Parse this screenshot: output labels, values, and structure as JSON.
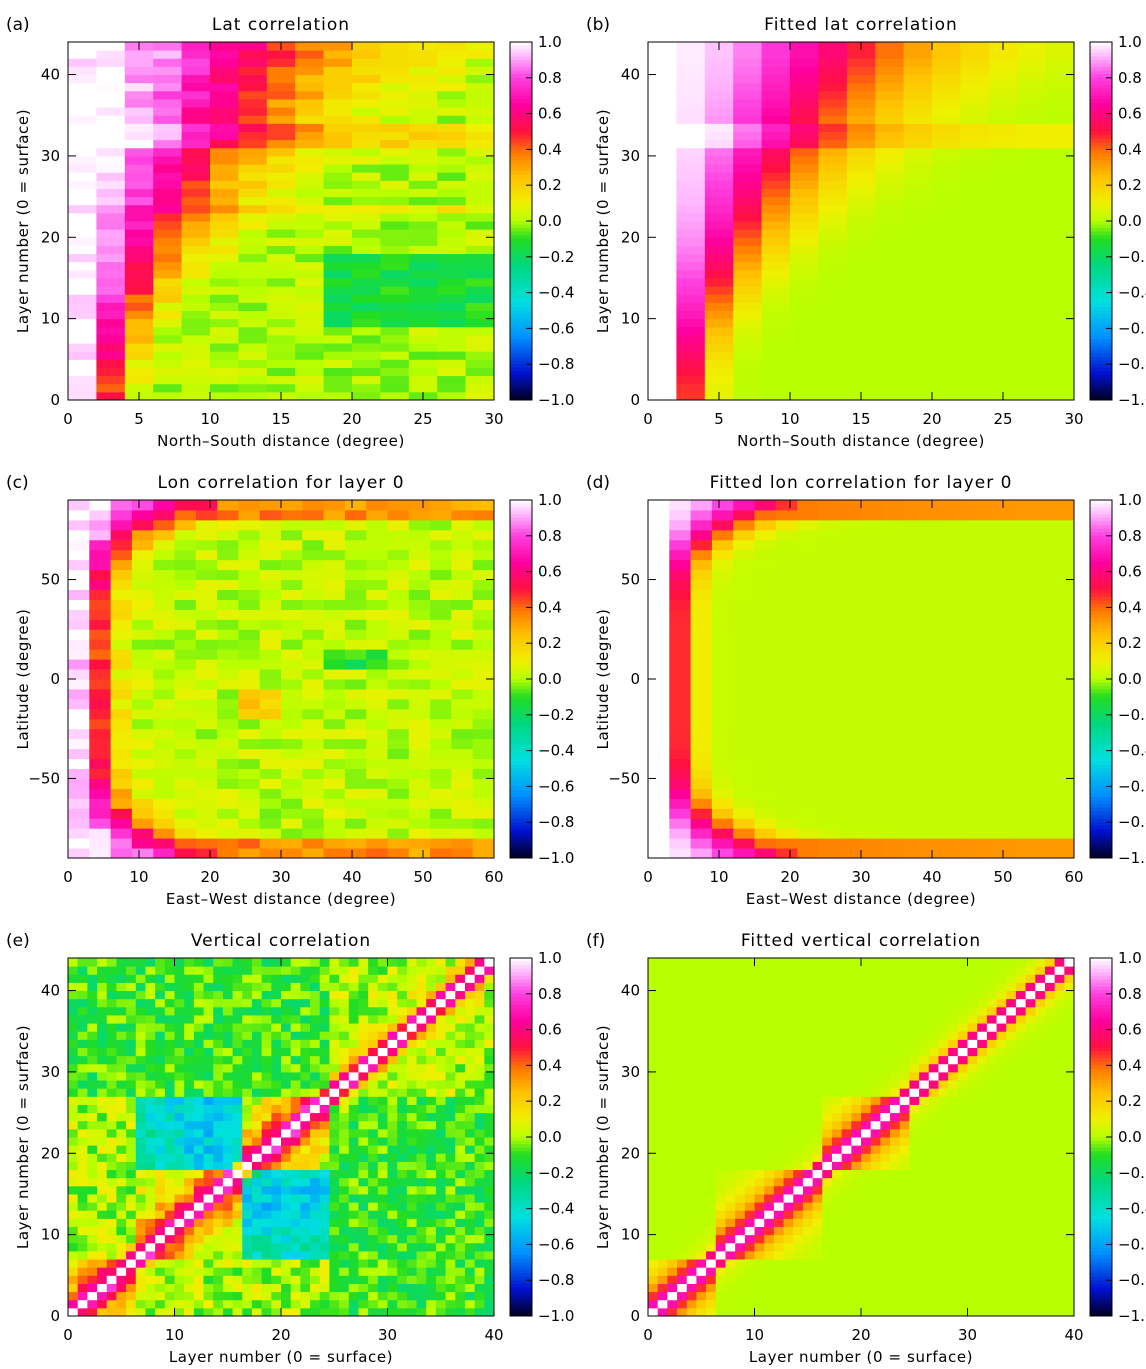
{
  "colorbar": {
    "ticks": [
      "1.0",
      "0.8",
      "0.6",
      "0.4",
      "0.2",
      "0.0",
      "-0.2",
      "-0.4",
      "-0.6",
      "-0.8",
      "-1.0"
    ],
    "stops": [
      {
        "v": -1.0,
        "c": "#000020"
      },
      {
        "v": -0.85,
        "c": "#0010d0"
      },
      {
        "v": -0.65,
        "c": "#0090ff"
      },
      {
        "v": -0.45,
        "c": "#00e0e0"
      },
      {
        "v": -0.25,
        "c": "#00d880"
      },
      {
        "v": -0.1,
        "c": "#22dd22"
      },
      {
        "v": 0.0,
        "c": "#b8ff00"
      },
      {
        "v": 0.1,
        "c": "#f0f000"
      },
      {
        "v": 0.25,
        "c": "#ffc000"
      },
      {
        "v": 0.38,
        "c": "#ff7a00"
      },
      {
        "v": 0.5,
        "c": "#ff1040"
      },
      {
        "v": 0.65,
        "c": "#ff00a0"
      },
      {
        "v": 0.8,
        "c": "#ff40e0"
      },
      {
        "v": 0.92,
        "c": "#ffb8ff"
      },
      {
        "v": 1.0,
        "c": "#ffffff"
      }
    ]
  },
  "chart_data": [
    {
      "type": "heatmap",
      "panel_label": "(a)",
      "title": "Lat correlation",
      "xlabel": "North–South distance (degree)",
      "ylabel": "Layer number (0 = surface)",
      "xlim": [
        0,
        30
      ],
      "ylim": [
        0,
        44
      ],
      "xticks": [
        "0",
        "5",
        "10",
        "15",
        "20",
        "25",
        "30"
      ],
      "yticks": [
        "0",
        "10",
        "20",
        "30",
        "40"
      ],
      "x_bin_width": 2,
      "fitted": false,
      "no_data_x_below": null,
      "description_values": {
        "x": [
          0,
          2,
          4,
          6,
          8,
          10,
          12,
          14,
          16,
          18,
          20,
          22,
          24,
          26,
          28
        ],
        "correlation_at_layer_0": [
          0.85,
          0.8,
          0.65,
          0.55,
          0.35,
          0.3,
          0.25,
          0.15,
          0.12,
          0.1,
          0.08,
          0.1,
          0.1,
          0.1,
          0.12
        ],
        "correlation_at_layer_40": [
          0.9,
          0.88,
          0.82,
          0.75,
          0.7,
          0.65,
          0.6,
          0.55,
          0.5,
          0.45,
          0.35,
          0.3,
          0.25,
          0.2,
          0.15
        ]
      }
    },
    {
      "type": "heatmap",
      "panel_label": "(b)",
      "title": "Fitted lat correlation",
      "xlabel": "North–South distance (degree)",
      "ylabel": "Layer number (0 = surface)",
      "xlim": [
        0,
        30
      ],
      "ylim": [
        0,
        44
      ],
      "xticks": [
        "0",
        "5",
        "10",
        "15",
        "20",
        "25",
        "30"
      ],
      "yticks": [
        "0",
        "10",
        "20",
        "30",
        "40"
      ],
      "x_bin_width": 2,
      "fitted": true,
      "no_data_x_below": 2
    },
    {
      "type": "heatmap",
      "panel_label": "(c)",
      "title": "Lon correlation for layer 0",
      "xlabel": "East–West distance (degree)",
      "ylabel": "Latitude (degree)",
      "xlim": [
        0,
        60
      ],
      "ylim": [
        -90,
        90
      ],
      "xticks": [
        "0",
        "10",
        "20",
        "30",
        "40",
        "50",
        "60"
      ],
      "yticks": [
        "−50",
        "0",
        "50"
      ],
      "x_bin_width": 3,
      "fitted": false,
      "no_data_x_below": null
    },
    {
      "type": "heatmap",
      "panel_label": "(d)",
      "title": "Fitted lon correlation for layer 0",
      "xlabel": "East–West distance (degree)",
      "ylabel": "Latitude (degree)",
      "xlim": [
        0,
        60
      ],
      "ylim": [
        -90,
        90
      ],
      "xticks": [
        "0",
        "10",
        "20",
        "30",
        "40",
        "50",
        "60"
      ],
      "yticks": [
        "−50",
        "0",
        "50"
      ],
      "x_bin_width": 3,
      "fitted": true,
      "no_data_x_below": 3
    },
    {
      "type": "heatmap",
      "panel_label": "(e)",
      "title": "Vertical correlation",
      "xlabel": "Layer number (0 = surface)",
      "ylabel": "Layer number (0 = surface)",
      "xlim": [
        0,
        44
      ],
      "ylim": [
        0,
        44
      ],
      "xticks": [
        "0",
        "10",
        "20",
        "30",
        "40"
      ],
      "yticks": [
        "0",
        "10",
        "20",
        "30",
        "40"
      ],
      "x_bin_width": 1,
      "fitted": false,
      "no_data_x_below": null,
      "diagonal_value": 1.0,
      "block_boundaries": [
        7,
        18,
        27,
        44
      ]
    },
    {
      "type": "heatmap",
      "panel_label": "(f)",
      "title": "Fitted vertical correlation",
      "xlabel": "Layer number (0 = surface)",
      "ylabel": "Layer number (0 = surface)",
      "xlim": [
        0,
        44
      ],
      "ylim": [
        0,
        44
      ],
      "xticks": [
        "0",
        "10",
        "20",
        "30",
        "40"
      ],
      "yticks": [
        "0",
        "10",
        "20",
        "30",
        "40"
      ],
      "x_bin_width": 1,
      "fitted": true,
      "no_data_x_below": null,
      "diagonal_value": 1.0,
      "block_boundaries": [
        7,
        18,
        27,
        44
      ]
    }
  ]
}
